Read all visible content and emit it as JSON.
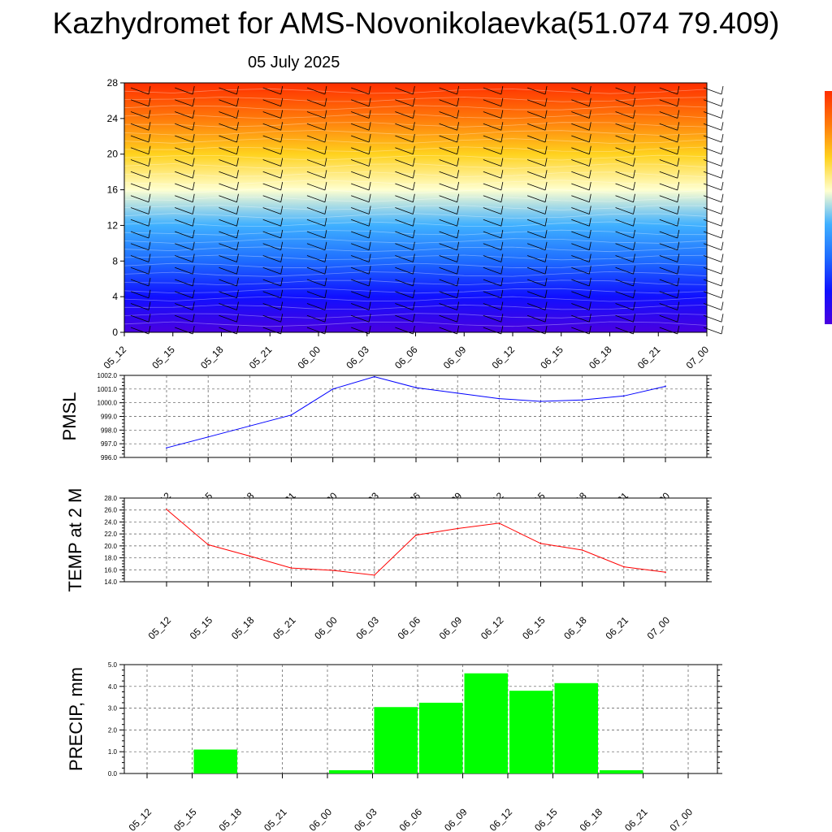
{
  "title": "Kazhydromet for AMS-Novonikolaevka(51.074 79.409)",
  "subtitle": "05 July 2025",
  "colors": {
    "pmsl_line": "#0000ff",
    "temp_line": "#ff0000",
    "precip_bar": "#00ff00",
    "grid": "#555555"
  },
  "chart_data": [
    {
      "type": "heatmap",
      "title": "",
      "xlabel": "",
      "ylabel": "",
      "x": [
        "05_12",
        "05_15",
        "05_18",
        "05_21",
        "06_00",
        "06_03",
        "06_06",
        "06_09",
        "06_12",
        "06_15",
        "06_18",
        "06_21",
        "07_00"
      ],
      "y_ticks": [
        0,
        4,
        8,
        12,
        16,
        20,
        24,
        28
      ],
      "ylim": [
        0,
        28
      ],
      "colormap": [
        "#4a00e0",
        "#1010ff",
        "#1e6cff",
        "#3fb0ff",
        "#ffffd0",
        "#ffd21e",
        "#ff7a0a",
        "#ff2e00"
      ],
      "overlay": "wind barbs and contour lines",
      "colorbar_position": "right"
    },
    {
      "type": "line",
      "ylabel": "PMSL",
      "xlabel": "",
      "x": [
        "05_12",
        "05_15",
        "05_18",
        "05_21",
        "06_00",
        "06_03",
        "06_06",
        "06_09",
        "06_12",
        "06_15",
        "06_18",
        "06_21",
        "07_00"
      ],
      "y_ticks": [
        "996.0",
        "997.0",
        "998.0",
        "999.0",
        "1000.0",
        "1001.0",
        "1002.0"
      ],
      "ylim": [
        996,
        1002
      ],
      "series": [
        {
          "values": [
            996.7,
            997.5,
            998.3,
            999.1,
            1001.0,
            1001.9,
            1001.1,
            1000.7,
            1000.3,
            1000.1,
            1000.2,
            1000.5,
            1001.2
          ]
        }
      ],
      "grid": true
    },
    {
      "type": "line",
      "ylabel": "TEMP at 2 M",
      "xlabel": "",
      "x": [
        "05_12",
        "05_15",
        "05_18",
        "05_21",
        "06_00",
        "06_03",
        "06_06",
        "06_09",
        "06_12",
        "06_15",
        "06_18",
        "06_21",
        "07_00"
      ],
      "y_ticks": [
        "14.0",
        "16.0",
        "18.0",
        "20.0",
        "22.0",
        "24.0",
        "26.0",
        "28.0"
      ],
      "ylim": [
        14,
        28
      ],
      "series": [
        {
          "values": [
            26.1,
            20.2,
            18.3,
            16.3,
            15.9,
            15.1,
            21.8,
            22.9,
            23.8,
            20.4,
            19.3,
            16.5,
            15.6
          ]
        }
      ],
      "grid": true
    },
    {
      "type": "bar",
      "ylabel": "PRECIP, mm",
      "xlabel": "",
      "x": [
        "05_12",
        "05_15",
        "05_18",
        "05_21",
        "06_00",
        "06_03",
        "06_06",
        "06_09",
        "06_12",
        "06_15",
        "06_18",
        "06_21",
        "07_00"
      ],
      "y_ticks": [
        "0.0",
        "1.0",
        "2.0",
        "3.0",
        "4.0",
        "5.0"
      ],
      "ylim": [
        0,
        5
      ],
      "values": [
        0,
        1.1,
        0,
        0,
        0.15,
        3.05,
        3.25,
        4.6,
        3.8,
        4.15,
        0.15,
        0,
        0
      ],
      "grid": true
    }
  ]
}
